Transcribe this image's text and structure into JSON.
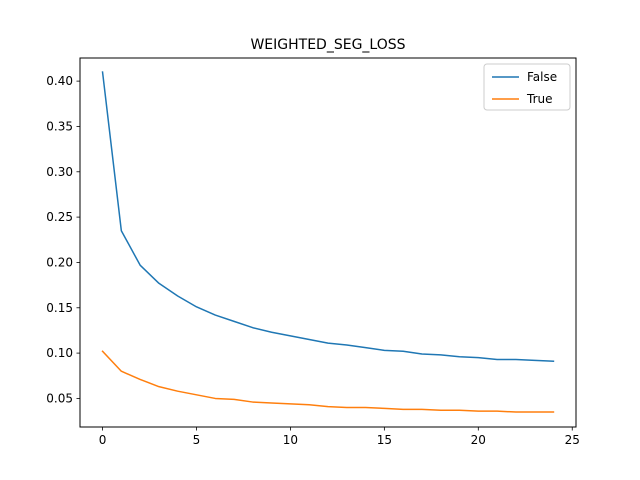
{
  "chart_data": {
    "type": "line",
    "title": "WEIGHTED_SEG_LOSS",
    "xlabel": "",
    "ylabel": "",
    "xlim": [
      -1.2,
      25.2
    ],
    "ylim": [
      0.0185,
      0.4255
    ],
    "xticks": [
      0,
      5,
      10,
      15,
      20,
      25
    ],
    "yticks": [
      0.05,
      0.1,
      0.15,
      0.2,
      0.25,
      0.3,
      0.35,
      0.4
    ],
    "grid": false,
    "legend_position": "top-right",
    "x": [
      0,
      1,
      2,
      3,
      4,
      5,
      6,
      7,
      8,
      9,
      10,
      11,
      12,
      13,
      14,
      15,
      16,
      17,
      18,
      19,
      20,
      21,
      22,
      23,
      24
    ],
    "series": [
      {
        "name": "False",
        "color": "#1f77b4",
        "values": [
          0.41,
          0.235,
          0.197,
          0.177,
          0.163,
          0.151,
          0.142,
          0.135,
          0.128,
          0.123,
          0.119,
          0.115,
          0.111,
          0.109,
          0.106,
          0.103,
          0.102,
          0.099,
          0.098,
          0.096,
          0.095,
          0.093,
          0.093,
          0.092,
          0.091
        ]
      },
      {
        "name": "True",
        "color": "#ff7f0e",
        "values": [
          0.102,
          0.08,
          0.071,
          0.063,
          0.058,
          0.054,
          0.05,
          0.049,
          0.046,
          0.045,
          0.044,
          0.043,
          0.041,
          0.04,
          0.04,
          0.039,
          0.038,
          0.038,
          0.037,
          0.037,
          0.036,
          0.036,
          0.035,
          0.035,
          0.035
        ]
      }
    ]
  }
}
